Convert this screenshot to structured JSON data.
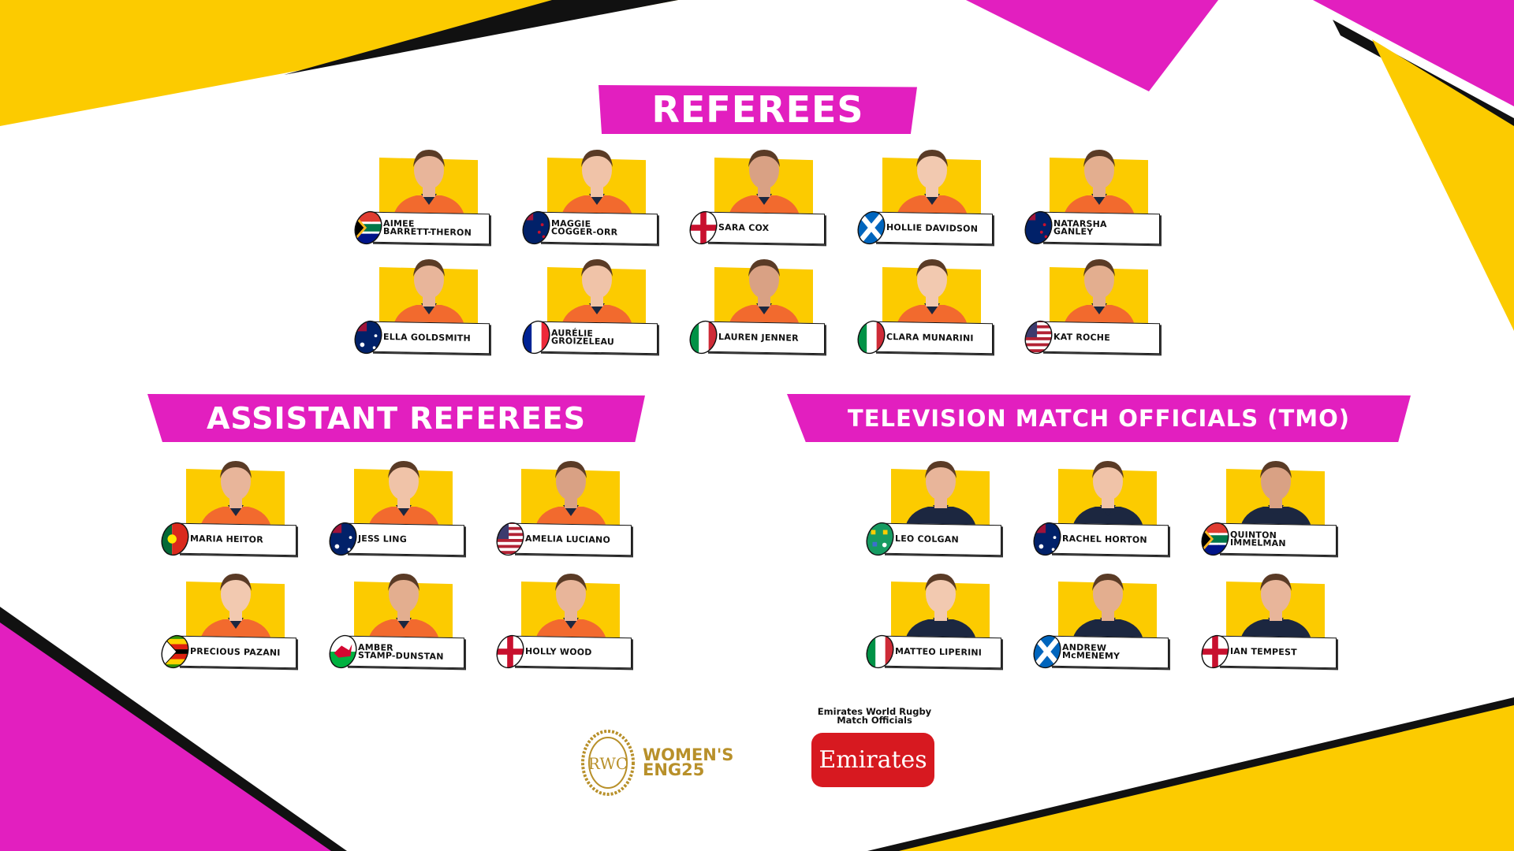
{
  "colors": {
    "pink": "#e21fbf",
    "yellow": "#fccb00",
    "black": "#111111",
    "emirates_red": "#d71920",
    "gold": "#b8902a"
  },
  "referees": {
    "title": "REFEREES",
    "people": [
      {
        "line1": "AIMEE",
        "line2": "BARRETT-THERON",
        "flag": "south-africa",
        "shirt": "orange"
      },
      {
        "line1": "MAGGIE",
        "line2": "COGGER-ORR",
        "flag": "new-zealand",
        "shirt": "orange"
      },
      {
        "line1": "SARA COX",
        "line2": "",
        "flag": "england",
        "shirt": "orange"
      },
      {
        "line1": "HOLLIE DAVIDSON",
        "line2": "",
        "flag": "scotland",
        "shirt": "orange"
      },
      {
        "line1": "NATARSHA",
        "line2": "GANLEY",
        "flag": "new-zealand",
        "shirt": "orange"
      },
      {
        "line1": "ELLA GOLDSMITH",
        "line2": "",
        "flag": "australia",
        "shirt": "orange"
      },
      {
        "line1": "AURÉLIE",
        "line2": "GROIZELEAU",
        "flag": "france",
        "shirt": "orange"
      },
      {
        "line1": "LAUREN JENNER",
        "line2": "",
        "flag": "italy",
        "shirt": "orange"
      },
      {
        "line1": "CLARA MUNARINI",
        "line2": "",
        "flag": "italy",
        "shirt": "orange"
      },
      {
        "line1": "KAT ROCHE",
        "line2": "",
        "flag": "usa",
        "shirt": "orange"
      }
    ]
  },
  "assistant_referees": {
    "title": "ASSISTANT REFEREES",
    "people": [
      {
        "line1": "MARIA HEITOR",
        "line2": "",
        "flag": "portugal",
        "shirt": "orange"
      },
      {
        "line1": "JESS LING",
        "line2": "",
        "flag": "australia",
        "shirt": "orange"
      },
      {
        "line1": "AMELIA LUCIANO",
        "line2": "",
        "flag": "usa",
        "shirt": "orange"
      },
      {
        "line1": "PRECIOUS PAZANI",
        "line2": "",
        "flag": "zimbabwe",
        "shirt": "orange"
      },
      {
        "line1": "AMBER",
        "line2": "STAMP-DUNSTAN",
        "flag": "wales",
        "shirt": "orange"
      },
      {
        "line1": "HOLLY WOOD",
        "line2": "",
        "flag": "england",
        "shirt": "orange"
      }
    ]
  },
  "tmo": {
    "title": "TELEVISION MATCH OFFICIALS (TMO)",
    "people": [
      {
        "line1": "LEO COLGAN",
        "line2": "",
        "flag": "ireland",
        "shirt": "navy"
      },
      {
        "line1": "RACHEL HORTON",
        "line2": "",
        "flag": "australia",
        "shirt": "navy"
      },
      {
        "line1": "QUINTON",
        "line2": "IMMELMAN",
        "flag": "south-africa",
        "shirt": "navy"
      },
      {
        "line1": "MATTEO LIPERINI",
        "line2": "",
        "flag": "italy",
        "shirt": "navy"
      },
      {
        "line1": "ANDREW",
        "line2": "McMENEMY",
        "flag": "scotland",
        "shirt": "navy"
      },
      {
        "line1": "IAN TEMPEST",
        "line2": "",
        "flag": "england",
        "shirt": "navy"
      }
    ]
  },
  "footer": {
    "logo_text": "WOMEN'S ENG25",
    "logo_monogram": "RWC",
    "sponsor_caption_line1": "Emirates World Rugby",
    "sponsor_caption_line2": "Match Officials",
    "sponsor_logo": "Emirates"
  }
}
